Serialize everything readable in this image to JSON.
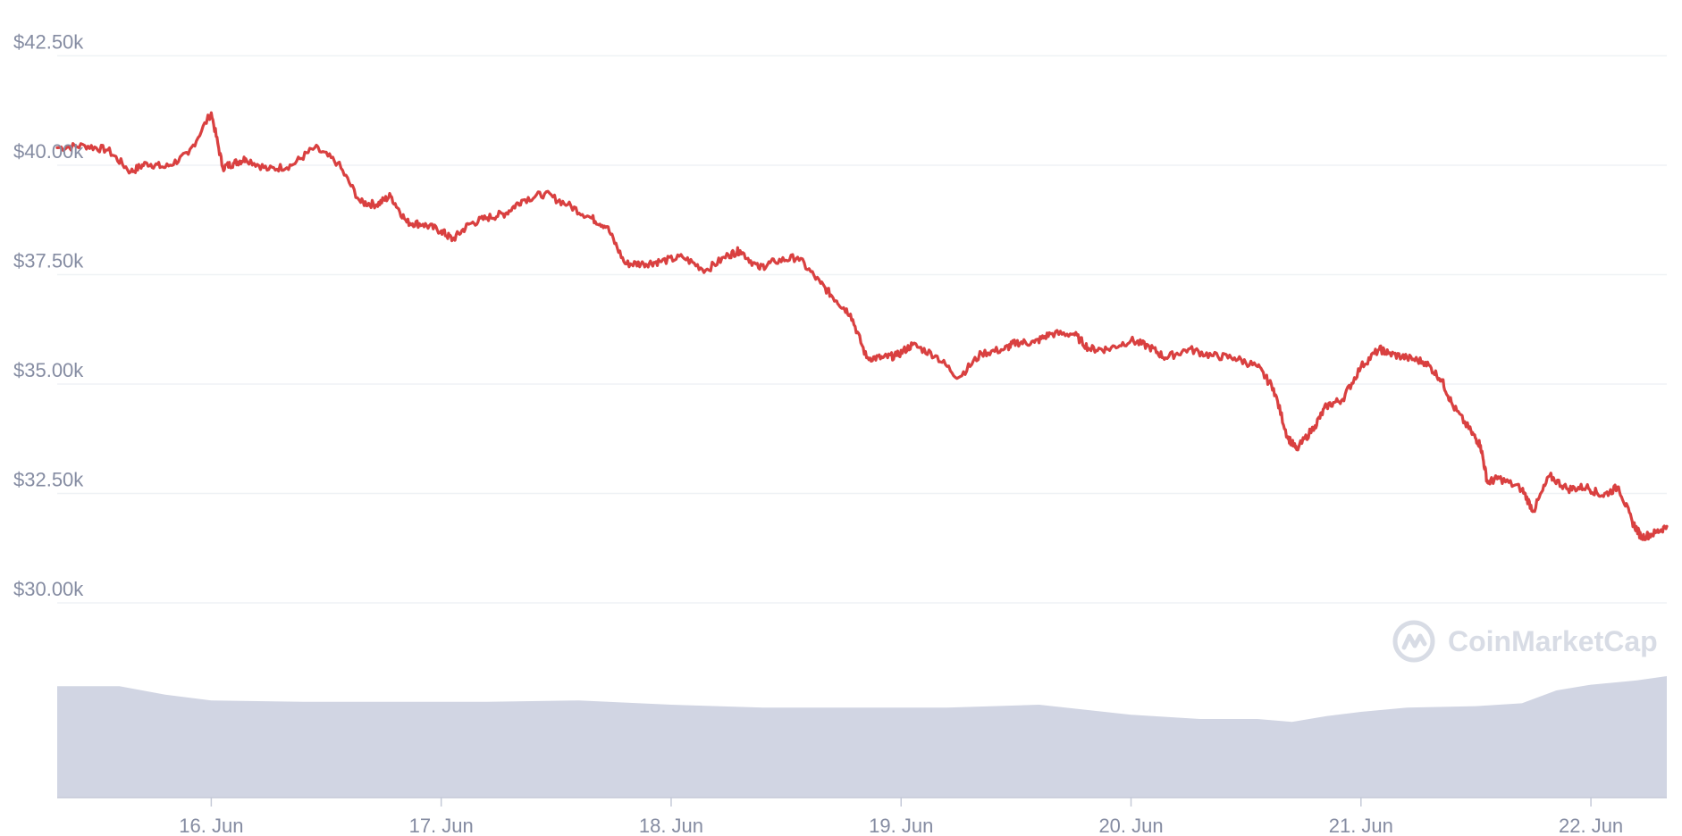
{
  "chart_data": {
    "type": "line",
    "title": "",
    "xlabel": "",
    "ylabel": "",
    "y_unit": "USD",
    "ylim": [
      29000,
      43000
    ],
    "y_ticks": [
      "$30.00k",
      "$32.50k",
      "$35.00k",
      "$37.50k",
      "$40.00k",
      "$42.50k"
    ],
    "y_tick_values": [
      30000,
      32500,
      35000,
      37500,
      40000,
      42500
    ],
    "x_ticks": [
      "16. Jun",
      "17. Jun",
      "18. Jun",
      "19. Jun",
      "20. Jun",
      "21. Jun",
      "22. Jun"
    ],
    "x_tick_days": [
      16,
      17,
      18,
      19,
      20,
      21,
      22
    ],
    "xlim": [
      15.33,
      22.33
    ],
    "grid": true,
    "legend": "none",
    "series": [
      {
        "type": "line",
        "color": "#d94040",
        "x": [
          15.33,
          15.45,
          15.55,
          15.65,
          15.72,
          15.8,
          15.9,
          16.0,
          16.05,
          16.1,
          16.15,
          16.25,
          16.35,
          16.45,
          16.55,
          16.65,
          16.72,
          16.78,
          16.85,
          16.92,
          17.0,
          17.05,
          17.12,
          17.2,
          17.28,
          17.35,
          17.45,
          17.55,
          17.65,
          17.72,
          17.8,
          17.88,
          17.95,
          18.05,
          18.15,
          18.25,
          18.3,
          18.38,
          18.45,
          18.55,
          18.65,
          18.72,
          18.78,
          18.85,
          18.92,
          18.98,
          19.05,
          19.15,
          19.25,
          19.35,
          19.45,
          19.5,
          19.58,
          19.65,
          19.75,
          19.82,
          19.9,
          20.0,
          20.08,
          20.15,
          20.25,
          20.35,
          20.45,
          20.55,
          20.62,
          20.68,
          20.72,
          20.8,
          20.85,
          20.92,
          21.0,
          21.08,
          21.12,
          21.2,
          21.28,
          21.35,
          21.4,
          21.48,
          21.52,
          21.55,
          21.6,
          21.7,
          21.75,
          21.82,
          21.9,
          21.98,
          22.05,
          22.12,
          22.18,
          22.22,
          22.28,
          22.33
        ],
        "values": [
          40400,
          40450,
          40350,
          39850,
          40050,
          39950,
          40250,
          41200,
          39950,
          40050,
          40150,
          39900,
          40000,
          40400,
          40050,
          39150,
          39100,
          39300,
          38700,
          38650,
          38500,
          38300,
          38650,
          38800,
          38900,
          39200,
          39350,
          39100,
          38800,
          38600,
          37750,
          37750,
          37800,
          37900,
          37600,
          37950,
          38050,
          37650,
          37800,
          37900,
          37300,
          36900,
          36600,
          35600,
          35600,
          35650,
          35900,
          35650,
          35150,
          35700,
          35800,
          35950,
          35950,
          36150,
          36150,
          35800,
          35800,
          36000,
          35850,
          35600,
          35800,
          35650,
          35600,
          35400,
          34900,
          33800,
          33500,
          34050,
          34500,
          34650,
          35400,
          35800,
          35700,
          35600,
          35500,
          35100,
          34500,
          33900,
          33600,
          32750,
          32850,
          32600,
          32100,
          32900,
          32600,
          32650,
          32450,
          32650,
          31850,
          31500,
          31600,
          31750
        ]
      },
      {
        "type": "area",
        "role": "volume",
        "color": "#d1d5e3",
        "x": [
          15.33,
          15.6,
          15.8,
          16.0,
          16.4,
          16.8,
          17.2,
          17.6,
          18.0,
          18.4,
          18.8,
          19.2,
          19.6,
          20.0,
          20.3,
          20.55,
          20.7,
          20.85,
          21.0,
          21.2,
          21.5,
          21.7,
          21.85,
          22.0,
          22.2,
          22.33
        ],
        "values": [
          0.78,
          0.78,
          0.72,
          0.68,
          0.67,
          0.67,
          0.67,
          0.68,
          0.65,
          0.63,
          0.63,
          0.63,
          0.65,
          0.58,
          0.55,
          0.55,
          0.53,
          0.57,
          0.6,
          0.63,
          0.64,
          0.66,
          0.75,
          0.79,
          0.82,
          0.85
        ]
      }
    ]
  },
  "watermark": {
    "text": "CoinMarketCap",
    "icon": "coinmarketcap-logo-icon"
  }
}
